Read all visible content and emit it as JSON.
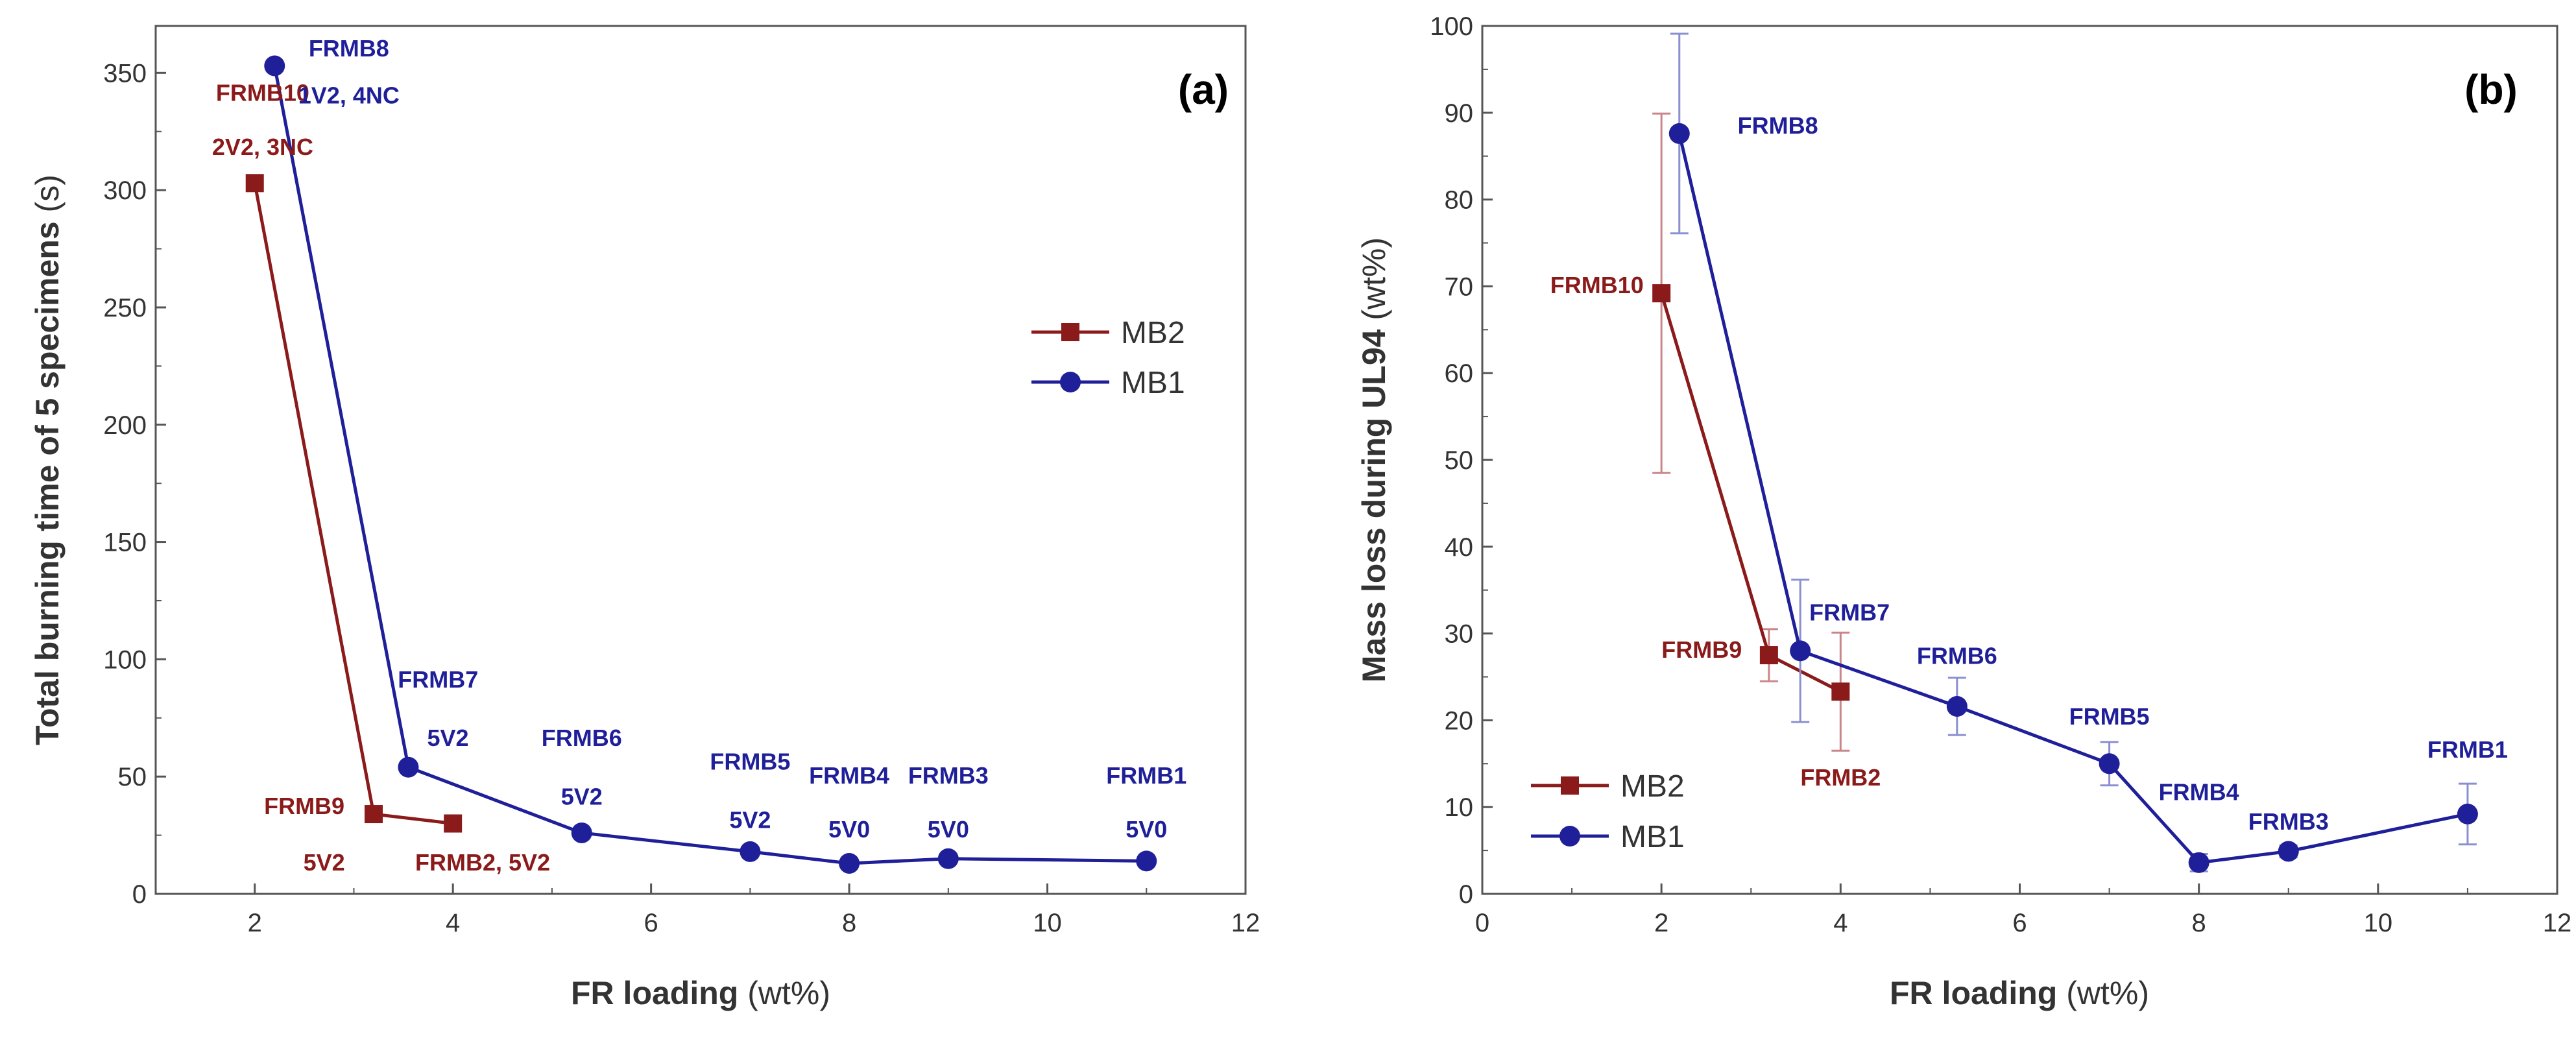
{
  "chart_data": [
    {
      "type": "line",
      "panel_label": "(a)",
      "xlabel": {
        "bold": "FR loading",
        "unit": "(wt%)"
      },
      "ylabel": {
        "bold": "Total burning time of 5 specimens",
        "unit": "(s)"
      },
      "xlim": [
        1,
        12
      ],
      "ylim": [
        0,
        370
      ],
      "xticks": [
        2,
        4,
        6,
        8,
        10,
        12
      ],
      "yticks": [
        0,
        50,
        100,
        150,
        200,
        250,
        300,
        350
      ],
      "legend": {
        "position": "center-right",
        "order": [
          "MB2",
          "MB1"
        ]
      },
      "series": [
        {
          "name": "MB2",
          "color": "#8b1a1a",
          "marker": "square",
          "x": [
            2,
            3.2,
            4
          ],
          "y": [
            303,
            34,
            30
          ]
        },
        {
          "name": "MB1",
          "color": "#1f1f9a",
          "marker": "circle",
          "x": [
            2.2,
            3.55,
            5.3,
            7,
            8,
            9,
            11
          ],
          "y": [
            353,
            54,
            26,
            18,
            13,
            15,
            14
          ]
        }
      ],
      "annotations": [
        {
          "text": "FRMB10",
          "series": "MB2",
          "x": 2.08,
          "y": 338
        },
        {
          "text": "2V2, 3NC",
          "series": "MB2",
          "x": 2.08,
          "y": 315
        },
        {
          "text": "FRMB8",
          "series": "MB1",
          "x": 2.95,
          "y": 357
        },
        {
          "text": "1V2, 4NC",
          "series": "MB1",
          "x": 2.95,
          "y": 337
        },
        {
          "text": "FRMB7",
          "series": "MB1",
          "x": 3.85,
          "y": 88
        },
        {
          "text": "5V2",
          "series": "MB1",
          "x": 3.95,
          "y": 63
        },
        {
          "text": "FRMB6",
          "series": "MB1",
          "x": 5.3,
          "y": 63
        },
        {
          "text": "5V2",
          "series": "MB1",
          "x": 5.3,
          "y": 38
        },
        {
          "text": "FRMB5",
          "series": "MB1",
          "x": 7.0,
          "y": 53
        },
        {
          "text": "5V2",
          "series": "MB1",
          "x": 7.0,
          "y": 28
        },
        {
          "text": "FRMB4",
          "series": "MB1",
          "x": 8.0,
          "y": 47
        },
        {
          "text": "5V0",
          "series": "MB1",
          "x": 8.0,
          "y": 24
        },
        {
          "text": "FRMB3",
          "series": "MB1",
          "x": 9.0,
          "y": 47
        },
        {
          "text": "5V0",
          "series": "MB1",
          "x": 9.0,
          "y": 24
        },
        {
          "text": "FRMB1",
          "series": "MB1",
          "x": 11.0,
          "y": 47
        },
        {
          "text": "5V0",
          "series": "MB1",
          "x": 11.0,
          "y": 24
        },
        {
          "text": "FRMB9",
          "series": "MB2",
          "x": 2.5,
          "y": 34
        },
        {
          "text": "5V2",
          "series": "MB2",
          "x": 2.7,
          "y": 10
        },
        {
          "text": "FRMB2, 5V2",
          "series": "MB2",
          "x": 4.3,
          "y": 10
        }
      ]
    },
    {
      "type": "line",
      "panel_label": "(b)",
      "xlabel": {
        "bold": "FR loading",
        "unit": "(wt%)"
      },
      "ylabel": {
        "bold": "Mass loss during UL94",
        "unit": "(wt%)"
      },
      "xlim": [
        0,
        12
      ],
      "ylim": [
        0,
        100
      ],
      "xticks": [
        0,
        2,
        4,
        6,
        8,
        10,
        12
      ],
      "yticks": [
        0,
        10,
        20,
        30,
        40,
        50,
        60,
        70,
        80,
        90,
        100
      ],
      "legend": {
        "position": "bottom-left",
        "order": [
          "MB2",
          "MB1"
        ]
      },
      "series": [
        {
          "name": "MB2",
          "color": "#8b1a1a",
          "marker": "square",
          "x": [
            2,
            3.2,
            4
          ],
          "y": [
            69.2,
            27.5,
            23.3
          ],
          "error": [
            20.7,
            3,
            6.8
          ]
        },
        {
          "name": "MB1",
          "color": "#1f1f9a",
          "marker": "circle",
          "x": [
            2.2,
            3.55,
            5.3,
            7,
            8,
            9,
            11
          ],
          "y": [
            87.6,
            28,
            21.6,
            15,
            3.6,
            4.9,
            9.2
          ],
          "error": [
            11.5,
            8.2,
            3.3,
            2.5,
            1,
            0.7,
            3.5
          ]
        }
      ],
      "annotations": [
        {
          "text": "FRMB8",
          "series": "MB1",
          "x": 3.3,
          "y": 87.6
        },
        {
          "text": "FRMB10",
          "series": "MB2",
          "x": 1.28,
          "y": 69.2
        },
        {
          "text": "FRMB7",
          "series": "MB1",
          "x": 4.1,
          "y": 31.5
        },
        {
          "text": "FRMB9",
          "series": "MB2",
          "x": 2.45,
          "y": 27.2
        },
        {
          "text": "FRMB6",
          "series": "MB1",
          "x": 5.3,
          "y": 26.5
        },
        {
          "text": "FRMB5",
          "series": "MB1",
          "x": 7.0,
          "y": 19.5
        },
        {
          "text": "FRMB4",
          "series": "MB1",
          "x": 8.0,
          "y": 10.8
        },
        {
          "text": "FRMB3",
          "series": "MB1",
          "x": 9.0,
          "y": 7.4
        },
        {
          "text": "FRMB1",
          "series": "MB1",
          "x": 11.0,
          "y": 15.7
        },
        {
          "text": "FRMB2",
          "series": "MB2",
          "x": 4.0,
          "y": 12.5
        }
      ]
    }
  ]
}
